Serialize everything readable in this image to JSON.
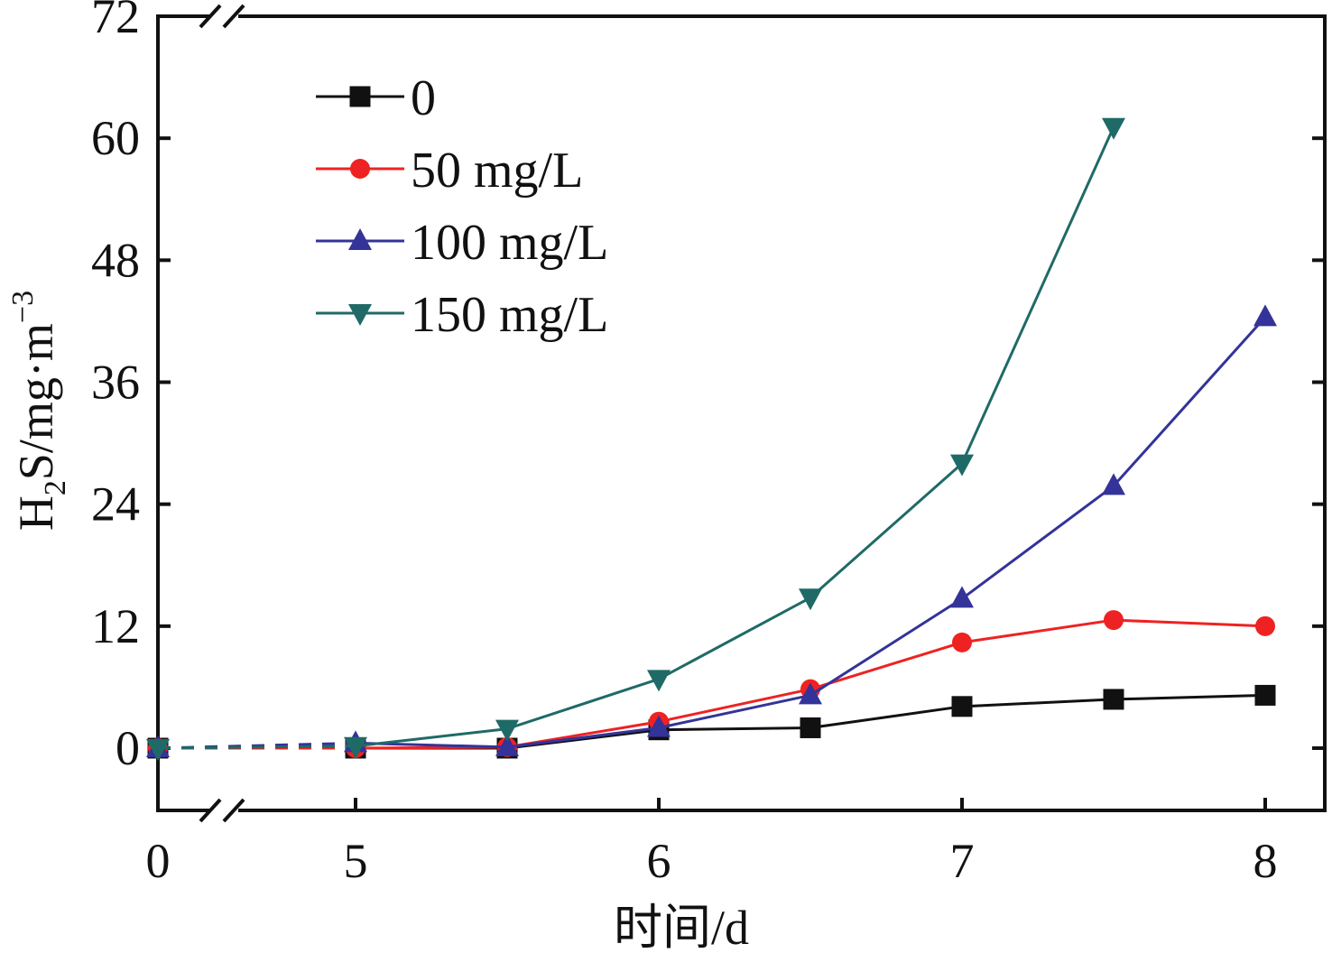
{
  "chart_data": {
    "type": "line",
    "xlabel": "时间/d",
    "ylabel_main": "H",
    "ylabel_sub": "2",
    "ylabel_rest": "S/mg·m",
    "ylabel_sup": "−3",
    "x_axis_break": true,
    "xlim": [
      0,
      8
    ],
    "ylim": [
      -6.5,
      72
    ],
    "x_ticks": [
      "0",
      "5",
      "6",
      "7",
      "8"
    ],
    "y_ticks": [
      "0",
      "12",
      "24",
      "36",
      "48",
      "60",
      "72"
    ],
    "legend_position": "top-left",
    "grid": false,
    "series": [
      {
        "name": "0",
        "color": "#111111",
        "marker": "square",
        "points": [
          [
            0,
            0
          ],
          [
            5,
            0
          ],
          [
            5.5,
            0
          ],
          [
            6,
            1.8
          ],
          [
            6.5,
            2.0
          ],
          [
            7,
            4.1
          ],
          [
            7.5,
            4.8
          ],
          [
            8,
            5.2
          ]
        ]
      },
      {
        "name": "50 mg/L",
        "color": "#ee2222",
        "marker": "diamond",
        "points": [
          [
            0,
            0
          ],
          [
            5,
            0
          ],
          [
            5.5,
            0.1
          ],
          [
            6,
            2.6
          ],
          [
            6.5,
            5.8
          ],
          [
            7,
            10.4
          ],
          [
            7.5,
            12.6
          ],
          [
            8,
            12.0
          ]
        ]
      },
      {
        "name": "100 mg/L",
        "color": "#333399",
        "marker": "triangle-up",
        "points": [
          [
            0,
            0
          ],
          [
            5,
            0.5
          ],
          [
            5.5,
            0.1
          ],
          [
            6,
            2.0
          ],
          [
            6.5,
            5.2
          ],
          [
            7,
            14.7
          ],
          [
            7.5,
            25.8
          ],
          [
            8,
            42.4
          ]
        ]
      },
      {
        "name": "150 mg/L",
        "color": "#1f6a66",
        "marker": "triangle-down",
        "points": [
          [
            0,
            0
          ],
          [
            5,
            0.2
          ],
          [
            5.5,
            1.9
          ],
          [
            6,
            6.8
          ],
          [
            6.5,
            14.8
          ],
          [
            7,
            28.0
          ],
          [
            7.5,
            61.1
          ]
        ]
      }
    ]
  }
}
